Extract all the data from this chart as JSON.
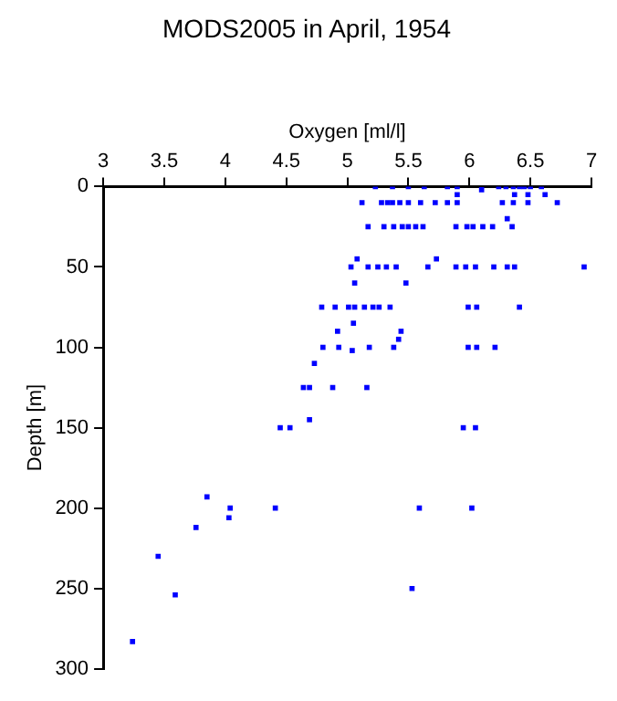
{
  "chart_data": {
    "type": "scatter",
    "title": "MODS2005 in April, 1954",
    "xlabel": "Oxygen [ml/l]",
    "ylabel": "Depth [m]",
    "x": [
      5.23,
      5.37,
      5.5,
      5.63,
      5.82,
      5.9,
      6.1,
      6.24,
      6.3,
      6.36,
      6.41,
      6.45,
      6.5,
      6.59,
      5.9,
      6.37,
      6.48,
      6.62,
      5.12,
      5.28,
      5.33,
      5.37,
      5.43,
      5.5,
      5.6,
      5.72,
      5.82,
      5.9,
      6.27,
      6.36,
      6.48,
      6.72,
      6.31,
      5.17,
      5.3,
      5.38,
      5.45,
      5.5,
      5.56,
      5.62,
      5.89,
      5.98,
      6.03,
      6.11,
      6.19,
      6.35,
      5.03,
      5.17,
      5.25,
      5.32,
      5.4,
      5.66,
      5.89,
      5.97,
      6.05,
      6.2,
      6.31,
      6.37,
      6.94,
      5.08,
      5.73,
      5.06,
      5.48,
      4.79,
      4.9,
      5.01,
      5.06,
      5.14,
      5.21,
      5.26,
      5.35,
      5.99,
      6.06,
      6.41,
      5.05,
      4.92,
      5.44,
      5.42,
      4.8,
      4.93,
      5.18,
      5.38,
      5.99,
      6.06,
      6.21,
      5.04,
      4.73,
      4.64,
      4.69,
      4.88,
      5.16,
      4.69,
      4.45,
      4.53,
      5.95,
      6.05,
      3.85,
      4.04,
      4.41,
      5.59,
      6.02,
      4.03,
      3.76,
      3.45,
      3.59,
      3.24,
      5.53
    ],
    "values": [
      0,
      0,
      0,
      0,
      0,
      0,
      2,
      0,
      0,
      0,
      0,
      0,
      0,
      0,
      5,
      5,
      5,
      5,
      10,
      10,
      10,
      10,
      10,
      10,
      10,
      10,
      10,
      10,
      10,
      10,
      10,
      10,
      20,
      25,
      25,
      25,
      25,
      25,
      25,
      25,
      25,
      25,
      25,
      25,
      25,
      25,
      50,
      50,
      50,
      50,
      50,
      50,
      50,
      50,
      50,
      50,
      50,
      50,
      50,
      45,
      45,
      60,
      60,
      75,
      75,
      75,
      75,
      75,
      75,
      75,
      75,
      75,
      75,
      75,
      85,
      90,
      90,
      95,
      100,
      100,
      100,
      100,
      100,
      100,
      100,
      102,
      110,
      125,
      125,
      125,
      125,
      145,
      150,
      150,
      150,
      150,
      193,
      200,
      200,
      200,
      200,
      206,
      212,
      230,
      254,
      283,
      250
    ],
    "color": "#0000ff",
    "marker": "square",
    "xlim": [
      3,
      7
    ],
    "xticks": [
      3,
      3.5,
      4,
      4.5,
      5,
      5.5,
      6,
      6.5,
      7
    ],
    "ylim": [
      300,
      0
    ],
    "yticks": [
      0,
      50,
      100,
      150,
      200,
      250,
      300
    ],
    "grid": false,
    "legend": false
  }
}
